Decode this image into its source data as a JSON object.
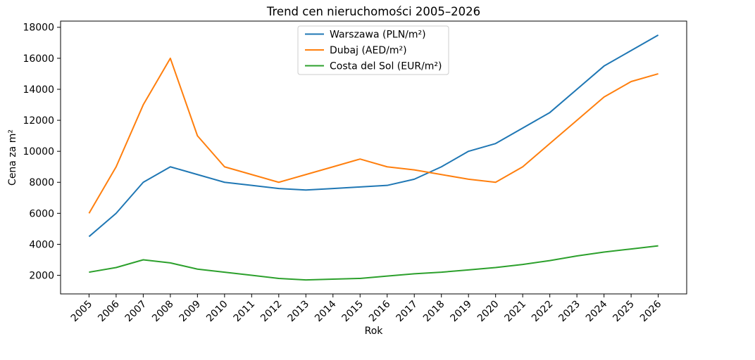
{
  "chart_data": {
    "type": "line",
    "title": "Trend cen nieruchomości 2005–2026",
    "xlabel": "Rok",
    "ylabel": "Cena za m²",
    "categories": [
      2005,
      2006,
      2007,
      2008,
      2009,
      2010,
      2011,
      2012,
      2013,
      2014,
      2015,
      2016,
      2017,
      2018,
      2019,
      2020,
      2021,
      2022,
      2023,
      2024,
      2025,
      2026
    ],
    "series": [
      {
        "name": "Warszawa (PLN/m²)",
        "slug": "warszawa",
        "color": "#1f77b4",
        "values": [
          4500,
          6000,
          8000,
          9000,
          8500,
          8000,
          7800,
          7600,
          7500,
          7600,
          7700,
          7800,
          8200,
          9000,
          10000,
          10500,
          11500,
          12500,
          14000,
          15500,
          16500,
          17500
        ]
      },
      {
        "name": "Dubaj (AED/m²)",
        "slug": "dubaj",
        "color": "#ff7f0e",
        "values": [
          6000,
          9000,
          13000,
          16000,
          11000,
          9000,
          8500,
          8000,
          8500,
          9000,
          9500,
          9000,
          8800,
          8500,
          8200,
          8000,
          9000,
          10500,
          12000,
          13500,
          14500,
          15000
        ]
      },
      {
        "name": "Costa del Sol (EUR/m²)",
        "slug": "costa-del-sol",
        "color": "#2ca02c",
        "values": [
          2200,
          2500,
          3000,
          2800,
          2400,
          2200,
          2000,
          1800,
          1700,
          1750,
          1800,
          1950,
          2100,
          2200,
          2350,
          2500,
          2700,
          2950,
          3250,
          3500,
          3700,
          3900
        ]
      }
    ],
    "yticks": [
      2000,
      4000,
      6000,
      8000,
      10000,
      12000,
      14000,
      16000,
      18000
    ],
    "ylim": [
      800,
      18400
    ],
    "x_margin_years": 1.05,
    "x_tick_rotation": 45,
    "grid": false,
    "legend_position": "upper center",
    "legend_border_color": "#cccccc",
    "axis_color": "#000000",
    "background_color": "#ffffff"
  }
}
